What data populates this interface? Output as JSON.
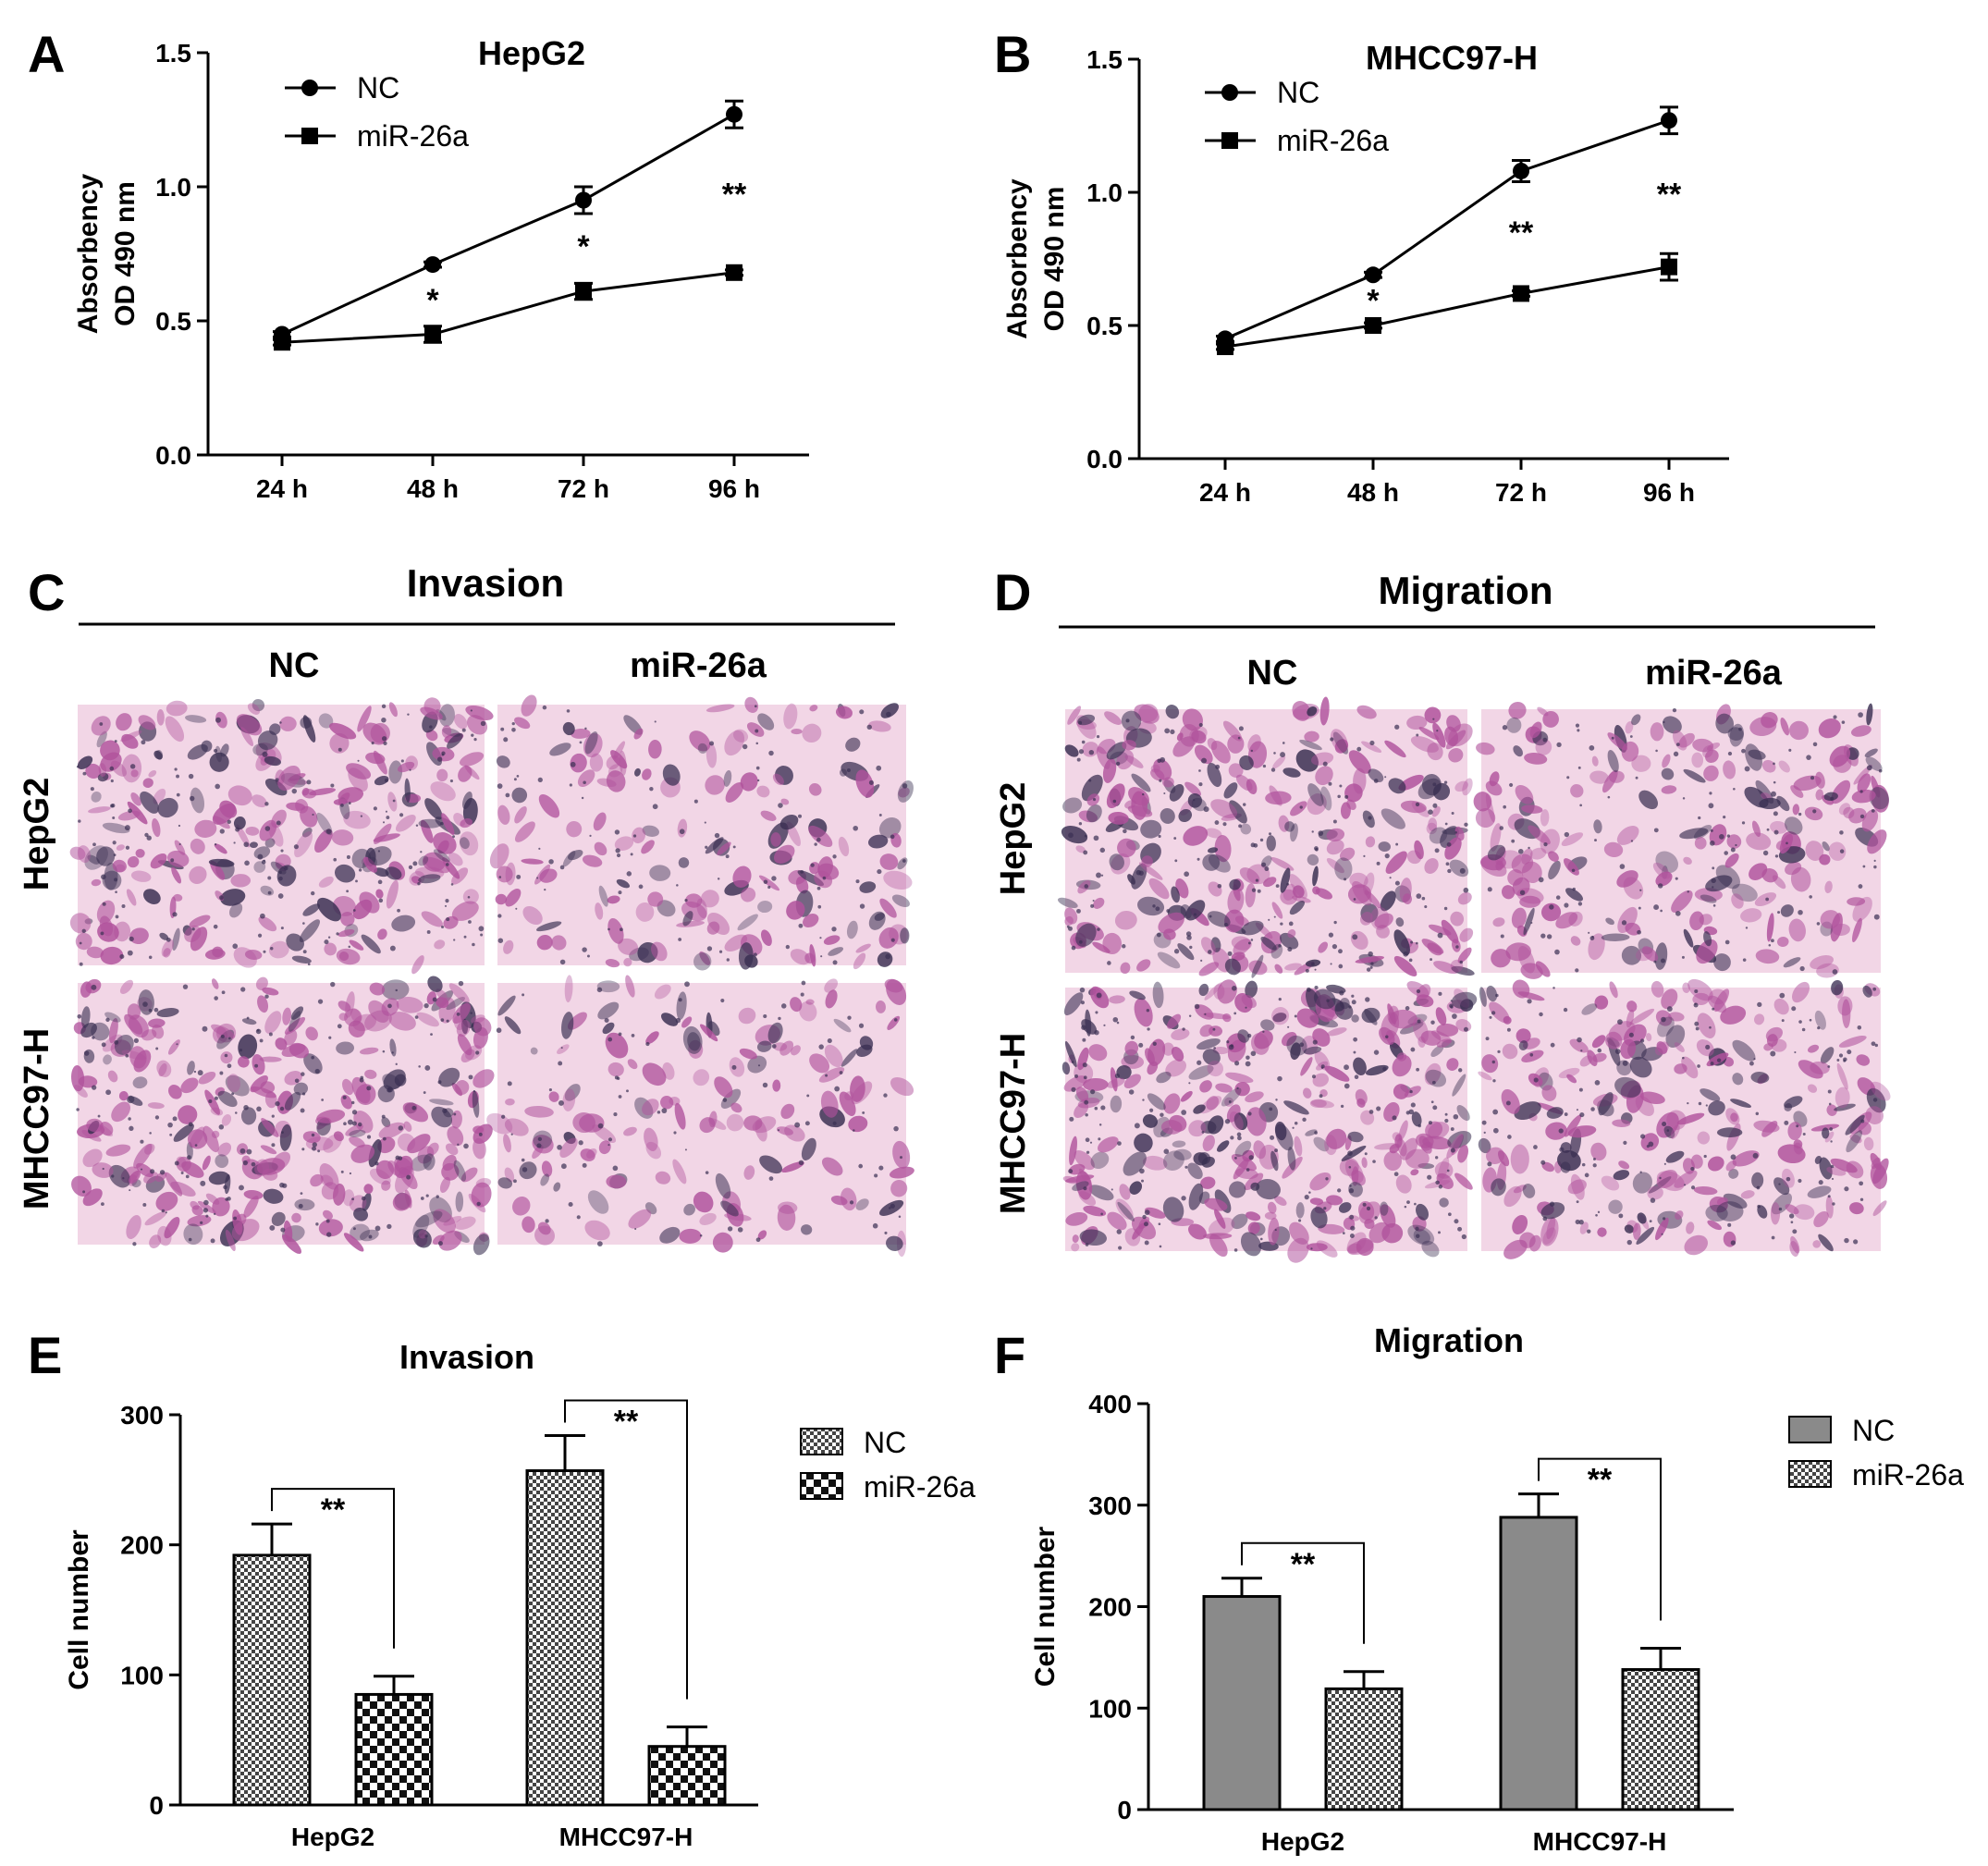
{
  "panels": {
    "A": "A",
    "B": "B",
    "C": "C",
    "D": "D",
    "E": "E",
    "F": "F"
  },
  "micrographs": {
    "invasion_title": "Invasion",
    "migration_title": "Migration",
    "columns": [
      "NC",
      "miR-26a"
    ],
    "rows": [
      "HepG2",
      "MHCC97-H"
    ],
    "colors": {
      "background": "#f2d6e6",
      "stain": "#b0529c",
      "dark": "#3a2f52"
    }
  },
  "chart_data": [
    {
      "id": "A",
      "type": "line",
      "title": "HepG2",
      "ylabel": [
        "Absorbency",
        "OD 490 nm"
      ],
      "categories": [
        "24 h",
        "48 h",
        "72 h",
        "96 h"
      ],
      "ylim": [
        0,
        1.5
      ],
      "yticks": [
        "0.0",
        "0.5",
        "1.0",
        "1.5"
      ],
      "series": [
        {
          "name": "NC",
          "marker": "circle",
          "values": [
            0.45,
            0.71,
            0.95,
            1.27
          ],
          "errors": [
            0.01,
            0.01,
            0.05,
            0.05
          ]
        },
        {
          "name": "miR-26a",
          "marker": "square",
          "values": [
            0.42,
            0.45,
            0.61,
            0.68
          ],
          "errors": [
            0.01,
            0.03,
            0.03,
            0.01
          ]
        }
      ],
      "significance": [
        "",
        "*",
        "*",
        "**"
      ]
    },
    {
      "id": "B",
      "type": "line",
      "title": "MHCC97-H",
      "ylabel": [
        "Absorbency",
        "OD 490 nm"
      ],
      "categories": [
        "24 h",
        "48 h",
        "72 h",
        "96 h"
      ],
      "ylim": [
        0,
        1.5
      ],
      "yticks": [
        "0.0",
        "0.5",
        "1.0",
        "1.5"
      ],
      "series": [
        {
          "name": "NC",
          "marker": "circle",
          "values": [
            0.45,
            0.69,
            1.08,
            1.27
          ],
          "errors": [
            0.01,
            0.01,
            0.04,
            0.05
          ]
        },
        {
          "name": "miR-26a",
          "marker": "square",
          "values": [
            0.42,
            0.5,
            0.62,
            0.72
          ],
          "errors": [
            0.01,
            0.01,
            0.01,
            0.05
          ]
        }
      ],
      "significance": [
        "",
        "*",
        "**",
        "**"
      ]
    },
    {
      "id": "E",
      "type": "bar",
      "title": "Invasion",
      "ylabel": "Cell number",
      "categories": [
        "HepG2",
        "MHCC97-H"
      ],
      "ylim": [
        0,
        300
      ],
      "yticks": [
        "0",
        "100",
        "200",
        "300"
      ],
      "series": [
        {
          "name": "NC",
          "pattern": "fine-check",
          "values": [
            192,
            257
          ],
          "errors": [
            24,
            27
          ]
        },
        {
          "name": "miR-26a",
          "pattern": "coarse-check",
          "values": [
            85,
            45
          ],
          "errors": [
            14,
            15
          ]
        }
      ],
      "significance": [
        "**",
        "**"
      ]
    },
    {
      "id": "F",
      "type": "bar",
      "title": "Migration",
      "ylabel": "Cell number",
      "categories": [
        "HepG2",
        "MHCC97-H"
      ],
      "ylim": [
        0,
        400
      ],
      "yticks": [
        "0",
        "100",
        "200",
        "300",
        "400"
      ],
      "series": [
        {
          "name": "NC",
          "pattern": "solid-gray",
          "values": [
            210,
            288
          ],
          "errors": [
            18,
            23
          ]
        },
        {
          "name": "miR-26a",
          "pattern": "fine-check",
          "values": [
            119,
            138
          ],
          "errors": [
            17,
            21
          ]
        }
      ],
      "significance": [
        "**",
        "**"
      ]
    }
  ]
}
